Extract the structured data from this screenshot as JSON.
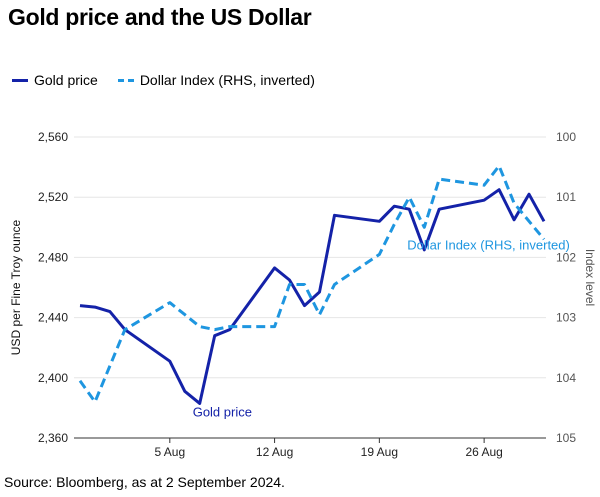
{
  "title": "Gold price and the US Dollar",
  "source": "Source: Bloomberg, as at 2 September 2024.",
  "colors": {
    "gold": "#1422a8",
    "dollar": "#1e96e0",
    "grid": "#e6e6e6",
    "axis": "#555555"
  },
  "legend": [
    {
      "label": "Gold price",
      "style": "solid",
      "color": "#1422a8"
    },
    {
      "label": "Dollar Index (RHS, inverted)",
      "style": "dashed",
      "color": "#1e96e0"
    }
  ],
  "chart_data": {
    "type": "line",
    "ylabel": "USD per Fine Troy ounce",
    "ylabel_right": "Index level",
    "ylim": [
      2360,
      2560
    ],
    "yticks": [
      2360,
      2400,
      2440,
      2480,
      2520,
      2560
    ],
    "ylim_right": [
      100,
      105
    ],
    "right_inverted": true,
    "yticks_right": [
      100,
      101,
      102,
      103,
      104,
      105
    ],
    "xticks": [
      {
        "date": "2024-08-05",
        "label": "5 Aug"
      },
      {
        "date": "2024-08-12",
        "label": "12 Aug"
      },
      {
        "date": "2024-08-19",
        "label": "19 Aug"
      },
      {
        "date": "2024-08-26",
        "label": "26 Aug"
      }
    ],
    "xlim": [
      "2024-07-30",
      "2024-08-30"
    ],
    "grid": true,
    "series": [
      {
        "name": "Gold price",
        "axis": "left",
        "style": "solid",
        "points": [
          [
            "2024-07-30",
            2448
          ],
          [
            "2024-07-31",
            2447
          ],
          [
            "2024-08-01",
            2444
          ],
          [
            "2024-08-02",
            2432
          ],
          [
            "2024-08-05",
            2411
          ],
          [
            "2024-08-06",
            2391
          ],
          [
            "2024-08-07",
            2383
          ],
          [
            "2024-08-08",
            2428
          ],
          [
            "2024-08-09",
            2432
          ],
          [
            "2024-08-12",
            2473
          ],
          [
            "2024-08-13",
            2465
          ],
          [
            "2024-08-14",
            2448
          ],
          [
            "2024-08-15",
            2457
          ],
          [
            "2024-08-16",
            2508
          ],
          [
            "2024-08-19",
            2504
          ],
          [
            "2024-08-20",
            2514
          ],
          [
            "2024-08-21",
            2512
          ],
          [
            "2024-08-22",
            2485
          ],
          [
            "2024-08-23",
            2512
          ],
          [
            "2024-08-26",
            2518
          ],
          [
            "2024-08-27",
            2525
          ],
          [
            "2024-08-28",
            2505
          ],
          [
            "2024-08-29",
            2522
          ],
          [
            "2024-08-30",
            2504
          ]
        ],
        "annotation": {
          "text": "Gold price",
          "date": "2024-08-08",
          "value": 2377
        }
      },
      {
        "name": "Dollar Index (RHS, inverted)",
        "axis": "right",
        "style": "dashed",
        "points": [
          [
            "2024-07-30",
            104.05
          ],
          [
            "2024-07-31",
            104.4
          ],
          [
            "2024-08-02",
            103.2
          ],
          [
            "2024-08-05",
            102.75
          ],
          [
            "2024-08-06",
            102.95
          ],
          [
            "2024-08-07",
            103.15
          ],
          [
            "2024-08-08",
            103.2
          ],
          [
            "2024-08-09",
            103.15
          ],
          [
            "2024-08-12",
            103.15
          ],
          [
            "2024-08-13",
            102.45
          ],
          [
            "2024-08-14",
            102.45
          ],
          [
            "2024-08-15",
            102.95
          ],
          [
            "2024-08-16",
            102.45
          ],
          [
            "2024-08-19",
            101.95
          ],
          [
            "2024-08-20",
            101.45
          ],
          [
            "2024-08-21",
            101.0
          ],
          [
            "2024-08-22",
            101.5
          ],
          [
            "2024-08-23",
            100.7
          ],
          [
            "2024-08-26",
            100.8
          ],
          [
            "2024-08-27",
            100.48
          ],
          [
            "2024-08-28",
            101.1
          ],
          [
            "2024-08-30",
            101.7
          ]
        ],
        "annotation": {
          "text": "Dollar Index (RHS, inverted)",
          "date": "2024-08-21",
          "value": 101.8
        }
      }
    ]
  }
}
